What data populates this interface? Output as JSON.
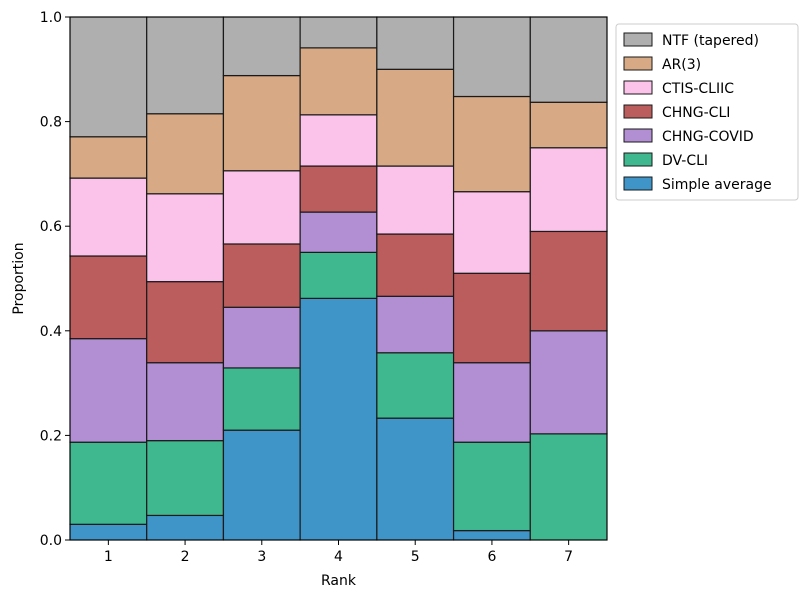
{
  "chart_data": {
    "type": "bar",
    "stacked": true,
    "xlabel": "Rank",
    "ylabel": "Proportion",
    "ylim": [
      0,
      1
    ],
    "yticks": [
      "0.0",
      "0.2",
      "0.4",
      "0.6",
      "0.8",
      "1.0"
    ],
    "categories": [
      "1",
      "2",
      "3",
      "4",
      "5",
      "6",
      "7"
    ],
    "grid": false,
    "legend_position": "outside-top-right",
    "series": [
      {
        "name": "Simple average",
        "color": "#3f94c8",
        "values": [
          0.03,
          0.047,
          0.21,
          0.462,
          0.233,
          0.018,
          0.0
        ]
      },
      {
        "name": "DV-CLI",
        "color": "#3fb890",
        "values": [
          0.157,
          0.143,
          0.119,
          0.088,
          0.125,
          0.169,
          0.203
        ]
      },
      {
        "name": "CHNG-COVID",
        "color": "#b28ed2",
        "values": [
          0.198,
          0.149,
          0.116,
          0.077,
          0.108,
          0.152,
          0.197
        ]
      },
      {
        "name": "CHNG-CLI",
        "color": "#bb5d5d",
        "values": [
          0.158,
          0.155,
          0.121,
          0.088,
          0.119,
          0.171,
          0.19
        ]
      },
      {
        "name": "CTIS-CLIIC",
        "color": "#fcc3ea",
        "values": [
          0.149,
          0.168,
          0.14,
          0.098,
          0.13,
          0.156,
          0.16
        ]
      },
      {
        "name": "AR(3)",
        "color": "#d7aa85",
        "values": [
          0.079,
          0.153,
          0.182,
          0.128,
          0.185,
          0.182,
          0.087
        ]
      },
      {
        "name": "NTF (tapered)",
        "color": "#afafaf",
        "values": [
          0.229,
          0.185,
          0.112,
          0.059,
          0.1,
          0.152,
          0.163
        ]
      }
    ]
  }
}
